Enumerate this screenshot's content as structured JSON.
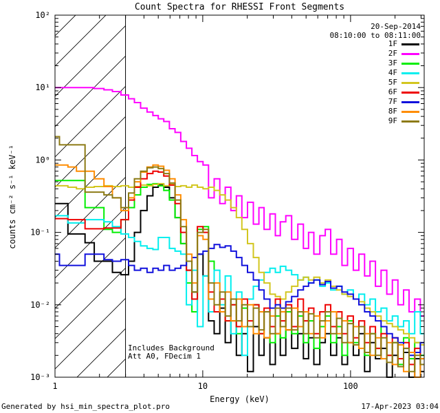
{
  "header": {
    "title": "Count Spectra for RHESSI Front Segments"
  },
  "annotations": {
    "date": "20-Sep-2014",
    "time_range": "08:10:00 to 08:11:00",
    "note_line1": "Includes Background",
    "note_line2": "Att A0, FDecim 1"
  },
  "footer": {
    "generated_by": "Generated by hsi_min_spectra_plot.pro",
    "timestamp": "17-Apr-2023 03:04"
  },
  "chart_data": {
    "type": "line",
    "title": "Count Spectra for RHESSI Front Segments",
    "xlabel": "Energy (keV)",
    "ylabel": "counts cm⁻² s⁻¹ keV⁻¹",
    "xscale": "log",
    "yscale": "log",
    "xlim": [
      1,
      315
    ],
    "ylim": [
      0.001,
      100
    ],
    "grid": false,
    "legend_position": "top-right-inside",
    "line_style": "histogram-steps",
    "shaded_region": {
      "x_start": 1,
      "x_end": 3,
      "style": "diagonal-hatch",
      "meaning": "excluded low-energy band"
    },
    "x_ticks": {
      "major": [
        1,
        10,
        100
      ],
      "major_labels": [
        "1",
        "10",
        "100"
      ],
      "minor": [
        2,
        3,
        4,
        5,
        6,
        7,
        8,
        9,
        20,
        30,
        40,
        50,
        60,
        70,
        80,
        90,
        200,
        300
      ]
    },
    "y_ticks": {
      "major": [
        100,
        10,
        1,
        0.1,
        0.01,
        0.001
      ],
      "major_labels": [
        "10²",
        "10¹",
        "10⁰",
        "10⁻¹",
        "10⁻²",
        "10⁻³"
      ],
      "minor": [
        0.002,
        0.003,
        0.004,
        0.005,
        0.006,
        0.007,
        0.008,
        0.009,
        0.02,
        0.03,
        0.04,
        0.05,
        0.06,
        0.07,
        0.08,
        0.09,
        0.2,
        0.3,
        0.4,
        0.5,
        0.6,
        0.7,
        0.8,
        0.9,
        2,
        3,
        4,
        5,
        6,
        7,
        8,
        9,
        20,
        30,
        40,
        50,
        60,
        70,
        80,
        90
      ]
    },
    "x": [
      1.0,
      1.15,
      1.3,
      1.5,
      1.7,
      2.0,
      2.3,
      2.6,
      3.0,
      3.3,
      3.6,
      4.0,
      4.4,
      4.8,
      5.2,
      5.7,
      6.2,
      6.8,
      7.4,
      8.1,
      8.8,
      9.6,
      10.5,
      11.4,
      12.5,
      13.6,
      14.8,
      16.2,
      17.6,
      19.2,
      21,
      23,
      25,
      27,
      30,
      32,
      35,
      38,
      42,
      46,
      50,
      54,
      59,
      65,
      70,
      77,
      84,
      91,
      100,
      109,
      119,
      130,
      141,
      154,
      168,
      184,
      200,
      219,
      238,
      260,
      284,
      310
    ],
    "series": [
      {
        "name": "1F",
        "color": "#000000",
        "values": [
          0.25,
          0.25,
          0.095,
          0.095,
          0.072,
          0.04,
          0.04,
          0.028,
          0.026,
          0.04,
          0.1,
          0.2,
          0.32,
          0.42,
          0.46,
          0.42,
          0.3,
          0.16,
          0.07,
          0.03,
          0.015,
          0.05,
          0.025,
          0.006,
          0.004,
          0.009,
          0.003,
          0.006,
          0.002,
          0.004,
          0.0012,
          0.005,
          0.002,
          0.0035,
          0.0015,
          0.004,
          0.002,
          0.0045,
          0.0025,
          0.004,
          0.0018,
          0.0035,
          0.0015,
          0.003,
          0.004,
          0.002,
          0.0035,
          0.0015,
          0.003,
          0.002,
          0.004,
          0.0012,
          0.003,
          0.0018,
          0.0025,
          0.001,
          0.002,
          0.0015,
          0.0022,
          0.001,
          0.0018,
          0.0012
        ]
      },
      {
        "name": "2F",
        "color": "#FF00FF",
        "values": [
          10,
          10,
          10,
          10,
          10,
          9.7,
          9.3,
          8.8,
          7.9,
          7.0,
          6.2,
          5.2,
          4.6,
          4.1,
          3.7,
          3.4,
          2.7,
          2.4,
          1.8,
          1.45,
          1.15,
          0.95,
          0.85,
          0.3,
          0.55,
          0.25,
          0.42,
          0.2,
          0.32,
          0.16,
          0.26,
          0.13,
          0.22,
          0.11,
          0.18,
          0.09,
          0.14,
          0.17,
          0.08,
          0.13,
          0.06,
          0.1,
          0.05,
          0.09,
          0.11,
          0.05,
          0.08,
          0.035,
          0.06,
          0.03,
          0.05,
          0.025,
          0.04,
          0.018,
          0.03,
          0.014,
          0.022,
          0.01,
          0.016,
          0.008,
          0.012,
          0.007
        ]
      },
      {
        "name": "3F",
        "color": "#00EE00",
        "values": [
          0.52,
          0.52,
          0.52,
          0.52,
          0.22,
          0.22,
          0.11,
          0.1,
          0.15,
          0.22,
          0.33,
          0.42,
          0.46,
          0.47,
          0.44,
          0.38,
          0.28,
          0.16,
          0.07,
          0.02,
          0.008,
          0.11,
          0.12,
          0.04,
          0.008,
          0.012,
          0.006,
          0.01,
          0.004,
          0.009,
          0.005,
          0.01,
          0.004,
          0.008,
          0.003,
          0.007,
          0.0035,
          0.008,
          0.004,
          0.007,
          0.003,
          0.006,
          0.0025,
          0.005,
          0.007,
          0.003,
          0.005,
          0.002,
          0.006,
          0.003,
          0.005,
          0.002,
          0.004,
          0.0025,
          0.005,
          0.002,
          0.003,
          0.0015,
          0.0035,
          0.0018,
          0.003,
          0.002
        ]
      },
      {
        "name": "4F",
        "color": "#00EEEE",
        "values": [
          0.17,
          0.17,
          0.135,
          0.135,
          0.15,
          0.15,
          0.14,
          0.12,
          0.095,
          0.085,
          0.075,
          0.065,
          0.06,
          0.058,
          0.085,
          0.085,
          0.06,
          0.055,
          0.05,
          0.01,
          0.03,
          0.005,
          0.025,
          0.008,
          0.03,
          0.01,
          0.025,
          0.004,
          0.015,
          0.002,
          0.012,
          0.018,
          0.022,
          0.028,
          0.032,
          0.028,
          0.034,
          0.03,
          0.026,
          0.022,
          0.024,
          0.02,
          0.022,
          0.018,
          0.02,
          0.016,
          0.018,
          0.014,
          0.016,
          0.012,
          0.014,
          0.01,
          0.012,
          0.008,
          0.009,
          0.006,
          0.007,
          0.005,
          0.006,
          0.004,
          0.008,
          0.004
        ]
      },
      {
        "name": "5F",
        "color": "#D2C61E",
        "values": [
          0.44,
          0.44,
          0.42,
          0.4,
          0.42,
          0.43,
          0.44,
          0.43,
          0.44,
          0.42,
          0.43,
          0.45,
          0.44,
          0.46,
          0.47,
          0.44,
          0.46,
          0.43,
          0.44,
          0.42,
          0.45,
          0.42,
          0.4,
          0.42,
          0.38,
          0.33,
          0.28,
          0.22,
          0.16,
          0.11,
          0.07,
          0.045,
          0.028,
          0.02,
          0.014,
          0.013,
          0.012,
          0.015,
          0.018,
          0.022,
          0.024,
          0.022,
          0.024,
          0.02,
          0.022,
          0.018,
          0.016,
          0.014,
          0.013,
          0.012,
          0.011,
          0.009,
          0.008,
          0.007,
          0.006,
          0.0055,
          0.005,
          0.0045,
          0.004,
          0.0035,
          0.003,
          0.0028
        ]
      },
      {
        "name": "6F",
        "color": "#EE0000",
        "values": [
          0.155,
          0.155,
          0.15,
          0.15,
          0.112,
          0.112,
          0.115,
          0.115,
          0.15,
          0.28,
          0.42,
          0.55,
          0.65,
          0.7,
          0.68,
          0.6,
          0.45,
          0.25,
          0.1,
          0.03,
          0.012,
          0.12,
          0.1,
          0.015,
          0.008,
          0.012,
          0.006,
          0.01,
          0.005,
          0.012,
          0.006,
          0.01,
          0.004,
          0.009,
          0.005,
          0.012,
          0.006,
          0.01,
          0.005,
          0.012,
          0.006,
          0.009,
          0.004,
          0.008,
          0.01,
          0.005,
          0.008,
          0.004,
          0.007,
          0.0035,
          0.006,
          0.003,
          0.005,
          0.0025,
          0.004,
          0.002,
          0.0035,
          0.0018,
          0.003,
          0.0015,
          0.0025,
          0.0018
        ]
      },
      {
        "name": "7F",
        "color": "#1010DC",
        "values": [
          0.05,
          0.035,
          0.035,
          0.035,
          0.05,
          0.05,
          0.042,
          0.04,
          0.042,
          0.035,
          0.03,
          0.032,
          0.028,
          0.032,
          0.03,
          0.035,
          0.03,
          0.032,
          0.035,
          0.04,
          0.045,
          0.05,
          0.055,
          0.06,
          0.068,
          0.062,
          0.065,
          0.055,
          0.045,
          0.035,
          0.028,
          0.022,
          0.016,
          0.012,
          0.009,
          0.01,
          0.009,
          0.011,
          0.013,
          0.016,
          0.018,
          0.02,
          0.022,
          0.019,
          0.021,
          0.017,
          0.018,
          0.015,
          0.014,
          0.012,
          0.01,
          0.008,
          0.007,
          0.006,
          0.005,
          0.004,
          0.0035,
          0.003,
          0.0025,
          0.002,
          0.0022,
          0.003
        ]
      },
      {
        "name": "8F",
        "color": "#FF8C00",
        "values": [
          0.85,
          0.85,
          0.8,
          0.7,
          0.7,
          0.55,
          0.43,
          0.3,
          0.2,
          0.3,
          0.5,
          0.68,
          0.8,
          0.85,
          0.82,
          0.72,
          0.55,
          0.33,
          0.15,
          0.05,
          0.02,
          0.09,
          0.08,
          0.012,
          0.02,
          0.008,
          0.015,
          0.006,
          0.012,
          0.005,
          0.01,
          0.004,
          0.008,
          0.0035,
          0.007,
          0.004,
          0.008,
          0.0045,
          0.009,
          0.005,
          0.008,
          0.004,
          0.007,
          0.0035,
          0.006,
          0.008,
          0.004,
          0.006,
          0.003,
          0.005,
          0.0025,
          0.004,
          0.002,
          0.0035,
          0.0018,
          0.003,
          0.0015,
          0.0028,
          0.0012,
          0.0022,
          0.001,
          0.0018
        ]
      },
      {
        "name": "9F",
        "color": "#8C7A14",
        "values": [
          2.1,
          1.62,
          1.62,
          1.62,
          0.36,
          0.36,
          0.33,
          0.3,
          0.22,
          0.35,
          0.55,
          0.7,
          0.78,
          0.8,
          0.76,
          0.65,
          0.48,
          0.28,
          0.12,
          0.04,
          0.015,
          0.1,
          0.11,
          0.02,
          0.01,
          0.015,
          0.007,
          0.012,
          0.006,
          0.01,
          0.005,
          0.009,
          0.0045,
          0.008,
          0.004,
          0.009,
          0.005,
          0.009,
          0.0045,
          0.008,
          0.004,
          0.0075,
          0.0035,
          0.006,
          0.008,
          0.004,
          0.0065,
          0.003,
          0.0055,
          0.0028,
          0.005,
          0.0022,
          0.004,
          0.002,
          0.0035,
          0.0016,
          0.003,
          0.0014,
          0.0025,
          0.0012,
          0.002,
          0.0015
        ]
      }
    ]
  }
}
